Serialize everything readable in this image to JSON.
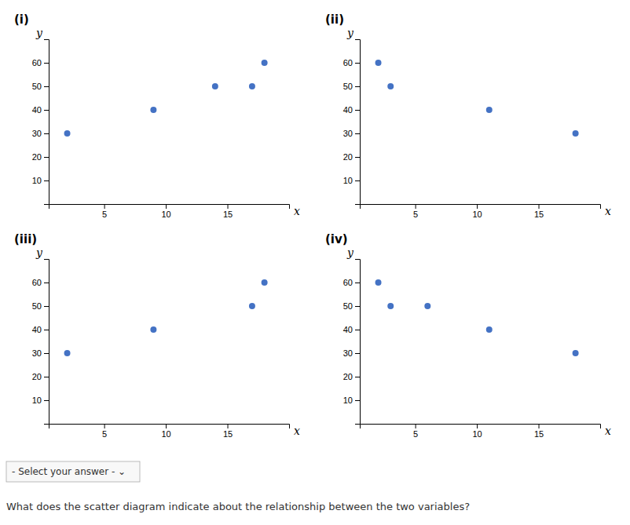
{
  "chart_data": [
    {
      "type": "scatter",
      "title": "(i)",
      "x_label": "x",
      "y_label": "y",
      "x": [
        2,
        9,
        14,
        17,
        18
      ],
      "values": [
        30,
        40,
        50,
        50,
        60
      ],
      "color": "#4472C4",
      "xlim": [
        0.5,
        20
      ],
      "ylim": [
        0,
        70
      ],
      "xticks": [
        5,
        10,
        15
      ],
      "yticks": [
        10,
        20,
        30,
        40,
        50,
        60
      ],
      "grid": false
    },
    {
      "type": "scatter",
      "title": "(ii)",
      "x_label": "x",
      "y_label": "y",
      "x": [
        2,
        3,
        11,
        18
      ],
      "values": [
        60,
        50,
        40,
        30
      ],
      "color": "#4472C4",
      "xlim": [
        0.5,
        20
      ],
      "ylim": [
        0,
        70
      ],
      "xticks": [
        5,
        10,
        15
      ],
      "yticks": [
        10,
        20,
        30,
        40,
        50,
        60
      ],
      "grid": false
    },
    {
      "type": "scatter",
      "title": "(iii)",
      "x_label": "x",
      "y_label": "y",
      "x": [
        2,
        9,
        17,
        18
      ],
      "values": [
        30,
        40,
        50,
        60
      ],
      "color": "#4472C4",
      "xlim": [
        0.5,
        20
      ],
      "ylim": [
        0,
        70
      ],
      "xticks": [
        5,
        10,
        15
      ],
      "yticks": [
        10,
        20,
        30,
        40,
        50,
        60
      ],
      "grid": false
    },
    {
      "type": "scatter",
      "title": "(iv)",
      "x_label": "x",
      "y_label": "y",
      "x": [
        2,
        3,
        6,
        11,
        18
      ],
      "values": [
        60,
        50,
        50,
        40,
        30
      ],
      "color": "#4472C4",
      "xlim": [
        0.5,
        20
      ],
      "ylim": [
        0,
        70
      ],
      "xticks": [
        5,
        10,
        15
      ],
      "yticks": [
        10,
        20,
        30,
        40,
        50,
        60
      ],
      "grid": false
    }
  ],
  "dropdown": "- Select your answer -  ⌄",
  "question": "What does the scatter diagram indicate about the relationship between the two variables?"
}
